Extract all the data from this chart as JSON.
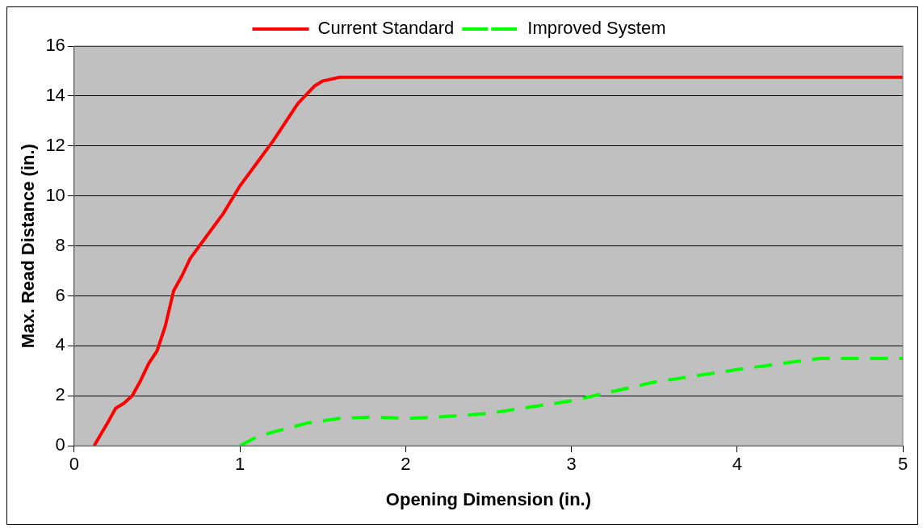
{
  "chart_data": {
    "type": "line",
    "xlabel": "Opening Dimension (in.)",
    "ylabel": "Max. Read Distance (in.)",
    "xlim": [
      0,
      5
    ],
    "xticks": [
      0,
      1,
      2,
      3,
      4,
      5
    ],
    "ylim": [
      0,
      16
    ],
    "yticks": [
      0,
      2,
      4,
      6,
      8,
      10,
      12,
      14,
      16
    ],
    "grid": "y",
    "legend": "top",
    "marker": "none",
    "series": [
      {
        "name": "Current Standard",
        "color": "#ff0000",
        "line_style": "solid",
        "x": [
          0.12,
          0.2,
          0.25,
          0.3,
          0.35,
          0.4,
          0.45,
          0.5,
          0.55,
          0.6,
          0.65,
          0.7,
          0.8,
          0.9,
          1.0,
          1.1,
          1.2,
          1.3,
          1.35,
          1.45,
          1.5,
          1.6,
          1.7,
          5
        ],
        "values": [
          0,
          0.9,
          1.5,
          1.7,
          2.0,
          2.6,
          3.3,
          3.8,
          4.8,
          6.2,
          6.8,
          7.5,
          8.4,
          9.3,
          10.4,
          11.3,
          12.2,
          13.2,
          13.7,
          14.4,
          14.6,
          14.75,
          14.75,
          14.75
        ]
      },
      {
        "name": "Improved System",
        "color": "#00ff00",
        "line_style": "dashed",
        "x": [
          1,
          1.1,
          1.2,
          1.4,
          1.6,
          1.8,
          2,
          2.2,
          2.5,
          2.8,
          3,
          3.2,
          3.5,
          4,
          4.5,
          5
        ],
        "values": [
          0,
          0.35,
          0.55,
          0.9,
          1.1,
          1.15,
          1.1,
          1.15,
          1.3,
          1.6,
          1.8,
          2.1,
          2.55,
          3.05,
          3.5,
          3.5
        ]
      }
    ]
  }
}
